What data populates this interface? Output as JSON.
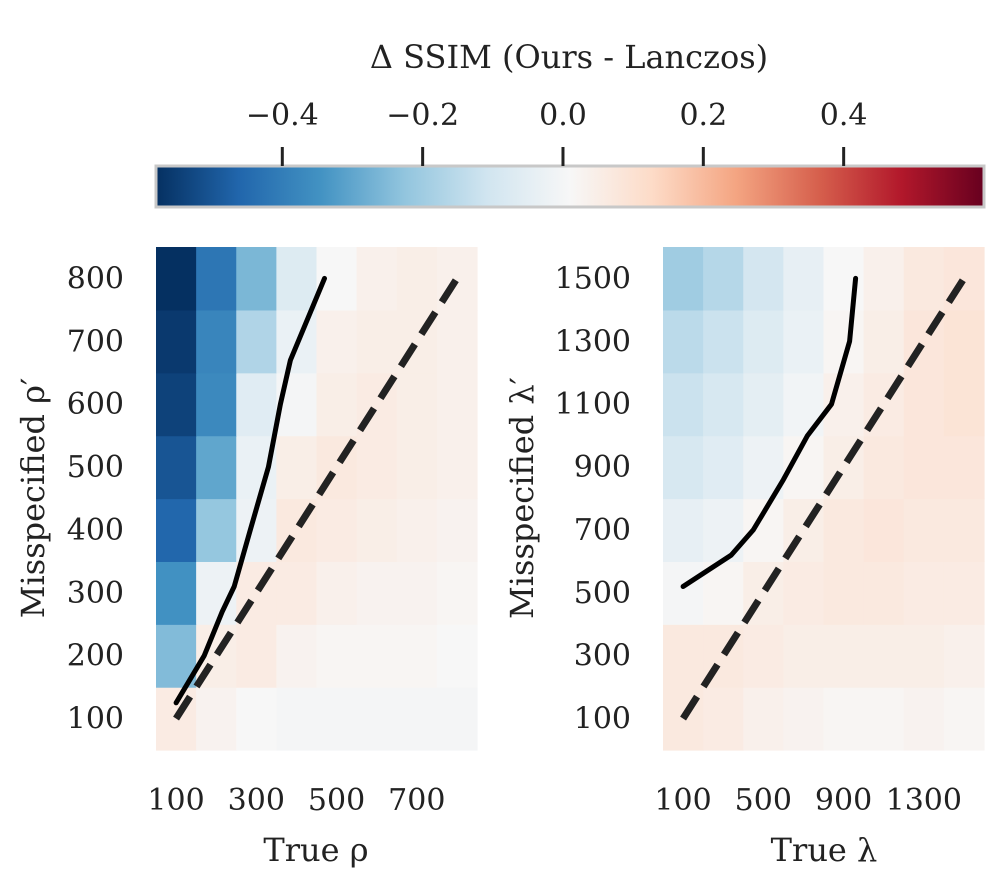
{
  "colorbar": {
    "title": "Δ SSIM (Ours - Lanczos)",
    "ticks": [
      -0.4,
      -0.2,
      0.0,
      0.2,
      0.4
    ],
    "tick_labels": [
      "−0.4",
      "−0.2",
      "0.0",
      "0.2",
      "0.4"
    ],
    "range": [
      -0.58,
      0.6
    ],
    "colors": [
      "#053061",
      "#2166ac",
      "#4393c3",
      "#92c5de",
      "#d1e5f0",
      "#f7f7f7",
      "#fddbc7",
      "#f4a582",
      "#d6604d",
      "#b2182b",
      "#67001f"
    ]
  },
  "chart_data": [
    {
      "type": "heatmap",
      "name": "rho",
      "xlabel": "True ρ",
      "ylabel": "Misspecified ρ′",
      "x_values": [
        100,
        200,
        300,
        400,
        500,
        600,
        700,
        800
      ],
      "y_values": [
        100,
        200,
        300,
        400,
        500,
        600,
        700,
        800
      ],
      "x_tick_labels": [
        "100",
        "300",
        "500",
        "700"
      ],
      "y_tick_labels": [
        "100",
        "200",
        "300",
        "400",
        "500",
        "600",
        "700",
        "800"
      ],
      "matrix": [
        [
          0.06,
          0.03,
          0.01,
          0.0,
          0.0,
          0.0,
          0.0,
          0.0
        ],
        [
          -0.25,
          0.05,
          0.06,
          0.03,
          0.02,
          0.02,
          0.02,
          0.01
        ],
        [
          -0.35,
          -0.02,
          0.06,
          0.06,
          0.04,
          0.03,
          0.03,
          0.02
        ],
        [
          -0.46,
          -0.22,
          -0.02,
          0.07,
          0.06,
          0.05,
          0.04,
          0.03
        ],
        [
          -0.5,
          -0.3,
          -0.03,
          0.05,
          0.07,
          0.06,
          0.05,
          0.04
        ],
        [
          -0.54,
          -0.37,
          -0.06,
          0.0,
          0.05,
          0.06,
          0.05,
          0.04
        ],
        [
          -0.56,
          -0.38,
          -0.17,
          -0.03,
          0.04,
          0.05,
          0.05,
          0.04
        ],
        [
          -0.58,
          -0.42,
          -0.26,
          -0.07,
          0.01,
          0.04,
          0.05,
          0.04
        ]
      ],
      "solid_line": [
        [
          100,
          125
        ],
        [
          170,
          200
        ],
        [
          215,
          270
        ],
        [
          245,
          310
        ],
        [
          285,
          400
        ],
        [
          330,
          500
        ],
        [
          360,
          600
        ],
        [
          385,
          670
        ],
        [
          470,
          800
        ]
      ],
      "dashed_line": [
        [
          100,
          100
        ],
        [
          800,
          800
        ]
      ]
    },
    {
      "type": "heatmap",
      "name": "lambda",
      "xlabel": "True λ",
      "ylabel": "Misspecified λ′",
      "x_values": [
        100,
        300,
        500,
        700,
        900,
        1100,
        1300,
        1500
      ],
      "y_values": [
        100,
        300,
        500,
        700,
        900,
        1100,
        1300,
        1500
      ],
      "x_tick_labels": [
        "100",
        "500",
        "900",
        "1300"
      ],
      "y_tick_labels": [
        "100",
        "300",
        "500",
        "700",
        "900",
        "1100",
        "1300",
        "1500"
      ],
      "matrix": [
        [
          0.07,
          0.06,
          0.04,
          0.03,
          0.02,
          0.02,
          0.03,
          0.02
        ],
        [
          0.07,
          0.07,
          0.06,
          0.05,
          0.05,
          0.05,
          0.05,
          0.04
        ],
        [
          0.0,
          0.02,
          0.05,
          0.06,
          0.07,
          0.07,
          0.06,
          0.06
        ],
        [
          -0.04,
          -0.02,
          0.02,
          0.05,
          0.07,
          0.08,
          0.07,
          0.07
        ],
        [
          -0.09,
          -0.06,
          -0.02,
          0.02,
          0.05,
          0.07,
          0.08,
          0.08
        ],
        [
          -0.12,
          -0.09,
          -0.05,
          -0.01,
          0.04,
          0.06,
          0.08,
          0.09
        ],
        [
          -0.15,
          -0.12,
          -0.07,
          -0.03,
          0.02,
          0.05,
          0.08,
          0.09
        ],
        [
          -0.2,
          -0.16,
          -0.1,
          -0.04,
          0.01,
          0.04,
          0.07,
          0.08
        ]
      ],
      "solid_line": [
        [
          100,
          520
        ],
        [
          340,
          620
        ],
        [
          450,
          700
        ],
        [
          600,
          860
        ],
        [
          720,
          1000
        ],
        [
          840,
          1100
        ],
        [
          930,
          1300
        ],
        [
          960,
          1500
        ]
      ],
      "dashed_line": [
        [
          100,
          100
        ],
        [
          1500,
          1500
        ]
      ]
    }
  ]
}
